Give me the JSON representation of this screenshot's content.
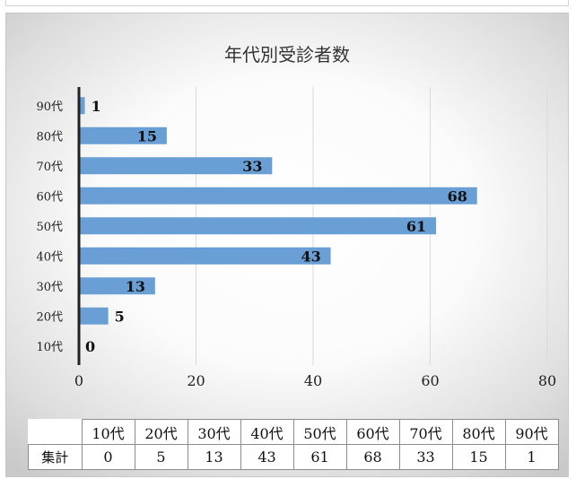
{
  "chart_data": {
    "type": "bar",
    "orientation": "horizontal",
    "title": "年代別受診者数",
    "categories": [
      "10代",
      "20代",
      "30代",
      "40代",
      "50代",
      "60代",
      "70代",
      "80代",
      "90代"
    ],
    "values": [
      0,
      5,
      13,
      43,
      61,
      68,
      33,
      15,
      1
    ],
    "xlim": [
      0,
      80
    ],
    "x_ticks": [
      "0",
      "20",
      "40",
      "60",
      "80"
    ],
    "grid": true,
    "legend": "none",
    "bar_color": "#6a9fd6",
    "axis_color": "#222222"
  },
  "table": {
    "row_label": "集計",
    "columns": [
      "10代",
      "20代",
      "30代",
      "40代",
      "50代",
      "60代",
      "70代",
      "80代",
      "90代"
    ],
    "values": [
      "0",
      "5",
      "13",
      "43",
      "61",
      "68",
      "33",
      "15",
      "1"
    ]
  }
}
